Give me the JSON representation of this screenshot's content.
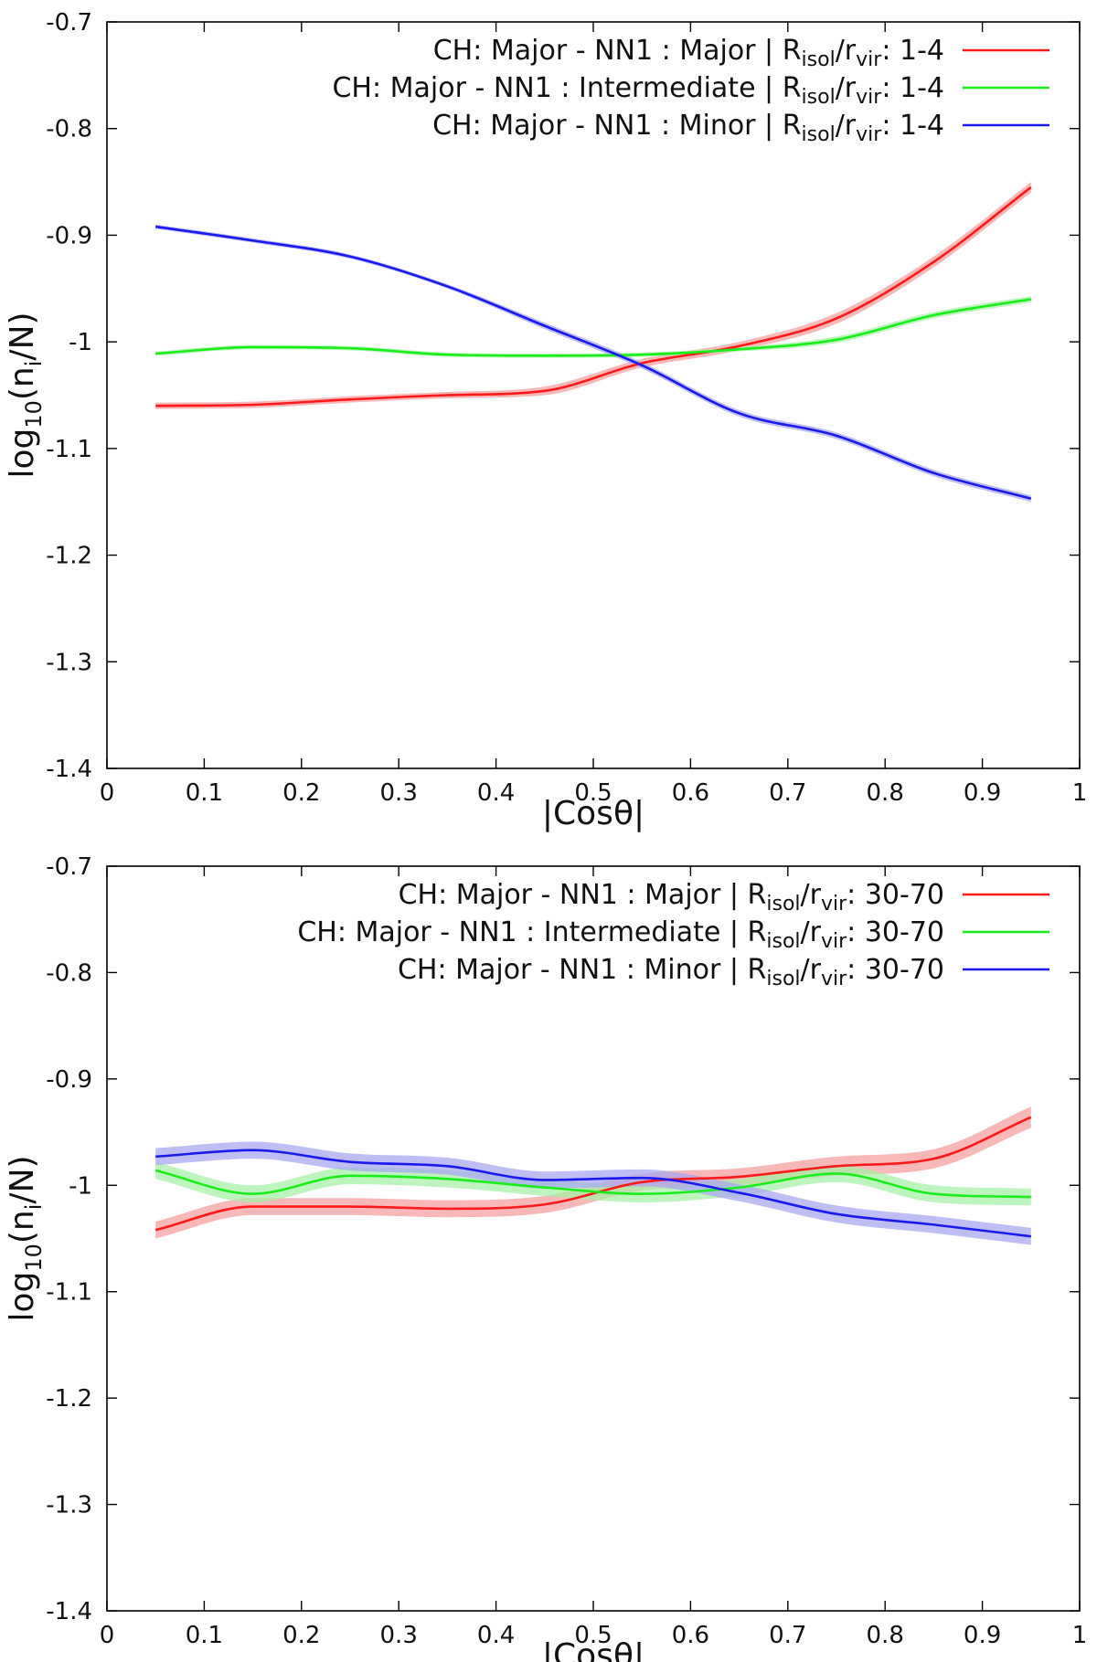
{
  "chart_data": [
    {
      "type": "line",
      "xlabel": "|Cosθ|",
      "ylabel_parts": {
        "base": "log",
        "sub": "10",
        "paren_open": "(n",
        "sub2": "i",
        "rest": "/N)"
      },
      "xlim": [
        0,
        1
      ],
      "ylim": [
        -1.4,
        -0.7
      ],
      "x_ticks": [
        "0",
        "0.1",
        "0.2",
        "0.3",
        "0.4",
        "0.5",
        "0.6",
        "0.7",
        "0.8",
        "0.9",
        "1"
      ],
      "x_tick_values": [
        0,
        0.1,
        0.2,
        0.3,
        0.4,
        0.5,
        0.6,
        0.7,
        0.8,
        0.9,
        1
      ],
      "y_ticks": [
        "-0.7",
        "-0.8",
        "-0.9",
        "-1",
        "-1.1",
        "-1.2",
        "-1.3",
        "-1.4"
      ],
      "y_tick_values": [
        -0.7,
        -0.8,
        -0.9,
        -1.0,
        -1.1,
        -1.2,
        -1.3,
        -1.4
      ],
      "legend_position": "top-right",
      "grid": false,
      "x": [
        0.05,
        0.15,
        0.25,
        0.35,
        0.45,
        0.55,
        0.65,
        0.75,
        0.85,
        0.95
      ],
      "series": [
        {
          "legend_main": "CH: Major - NN1 : Major | R",
          "legend_sub1": "isol",
          "legend_mid": "/r",
          "legend_sub2": "vir",
          "legend_end": ": 1-4",
          "color": "#ff1a1a",
          "band_color": "#f5a0a0",
          "values": [
            -1.06,
            -1.059,
            -1.054,
            -1.05,
            -1.046,
            -1.02,
            -1.004,
            -0.978,
            -0.925,
            -0.855
          ],
          "errors": [
            0.003,
            0.003,
            0.003,
            0.003,
            0.004,
            0.004,
            0.004,
            0.005,
            0.005,
            0.005
          ]
        },
        {
          "legend_main": "CH: Major - NN1 : Intermediate | R",
          "legend_sub1": "isol",
          "legend_mid": "/r",
          "legend_sub2": "vir",
          "legend_end": ": 1-4",
          "color": "#1aee1a",
          "band_color": "#a8f0a8",
          "values": [
            -1.011,
            -1.005,
            -1.006,
            -1.012,
            -1.013,
            -1.012,
            -1.007,
            -0.998,
            -0.975,
            -0.96
          ],
          "errors": [
            0.002,
            0.002,
            0.002,
            0.002,
            0.002,
            0.002,
            0.002,
            0.003,
            0.003,
            0.003
          ]
        },
        {
          "legend_main": "CH: Major - NN1 : Minor | R",
          "legend_sub1": "isol",
          "legend_mid": "/r",
          "legend_sub2": "vir",
          "legend_end": ": 1-4",
          "color": "#1a1aee",
          "band_color": "#a8a8f0",
          "values": [
            -0.892,
            -0.905,
            -0.92,
            -0.948,
            -0.985,
            -1.022,
            -1.067,
            -1.088,
            -1.123,
            -1.147
          ],
          "errors": [
            0.002,
            0.002,
            0.002,
            0.002,
            0.003,
            0.003,
            0.003,
            0.003,
            0.003,
            0.003
          ]
        }
      ]
    },
    {
      "type": "line",
      "xlabel": "|Cosθ|",
      "ylabel_parts": {
        "base": "log",
        "sub": "10",
        "paren_open": "(n",
        "sub2": "i",
        "rest": "/N)"
      },
      "xlim": [
        0,
        1
      ],
      "ylim": [
        -1.4,
        -0.7
      ],
      "x_ticks": [
        "0",
        "0.1",
        "0.2",
        "0.3",
        "0.4",
        "0.5",
        "0.6",
        "0.7",
        "0.8",
        "0.9",
        "1"
      ],
      "x_tick_values": [
        0,
        0.1,
        0.2,
        0.3,
        0.4,
        0.5,
        0.6,
        0.7,
        0.8,
        0.9,
        1
      ],
      "y_ticks": [
        "-0.7",
        "-0.8",
        "-0.9",
        "-1",
        "-1.1",
        "-1.2",
        "-1.3",
        "-1.4"
      ],
      "y_tick_values": [
        -0.7,
        -0.8,
        -0.9,
        -1.0,
        -1.1,
        -1.2,
        -1.3,
        -1.4
      ],
      "legend_position": "top-right",
      "grid": false,
      "x": [
        0.05,
        0.15,
        0.25,
        0.35,
        0.45,
        0.55,
        0.65,
        0.75,
        0.85,
        0.95
      ],
      "series": [
        {
          "legend_main": "CH: Major - NN1 : Major | R",
          "legend_sub1": "isol",
          "legend_mid": "/r",
          "legend_sub2": "vir",
          "legend_end": ": 30-70",
          "color": "#ff1a1a",
          "band_color": "#f5a0a0",
          "values": [
            -1.042,
            -1.02,
            -1.02,
            -1.022,
            -1.018,
            -0.997,
            -0.992,
            -0.982,
            -0.975,
            -0.936
          ],
          "errors": [
            0.008,
            0.008,
            0.008,
            0.008,
            0.008,
            0.008,
            0.008,
            0.009,
            0.009,
            0.01
          ]
        },
        {
          "legend_main": "CH: Major - NN1 : Intermediate | R",
          "legend_sub1": "isol",
          "legend_mid": "/r",
          "legend_sub2": "vir",
          "legend_end": ": 30-70",
          "color": "#1aee1a",
          "band_color": "#a8f0a8",
          "values": [
            -0.986,
            -1.008,
            -0.991,
            -0.994,
            -1.002,
            -1.008,
            -1.002,
            -0.989,
            -1.008,
            -1.011
          ],
          "errors": [
            0.008,
            0.008,
            0.008,
            0.008,
            0.008,
            0.008,
            0.008,
            0.008,
            0.008,
            0.008
          ]
        },
        {
          "legend_main": "CH: Major - NN1 : Minor | R",
          "legend_sub1": "isol",
          "legend_mid": "/r",
          "legend_sub2": "vir",
          "legend_end": ": 30-70",
          "color": "#1a1aee",
          "band_color": "#a8a8f0",
          "values": [
            -0.973,
            -0.967,
            -0.978,
            -0.982,
            -0.995,
            -0.993,
            -1.007,
            -1.027,
            -1.037,
            -1.048
          ],
          "errors": [
            0.008,
            0.008,
            0.008,
            0.008,
            0.008,
            0.008,
            0.008,
            0.008,
            0.008,
            0.008
          ]
        }
      ]
    }
  ]
}
